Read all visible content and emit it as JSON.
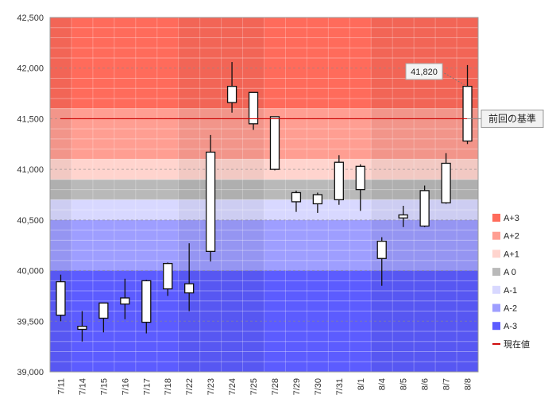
{
  "chart_data": {
    "type": "candlestick",
    "title": "",
    "xlabel": "",
    "ylabel": "",
    "ylim": [
      39000,
      42500
    ],
    "y_ticks": [
      "39,000",
      "39,500",
      "40,000",
      "40,500",
      "41,000",
      "41,500",
      "42,000",
      "42,500"
    ],
    "categories": [
      "7/11",
      "7/14",
      "7/15",
      "7/16",
      "7/17",
      "7/18",
      "7/22",
      "7/23",
      "7/24",
      "7/25",
      "7/28",
      "7/29",
      "7/30",
      "7/31",
      "8/1",
      "8/4",
      "8/5",
      "8/6",
      "8/7",
      "8/8"
    ],
    "candles": [
      {
        "date": "7/11",
        "open": 39560,
        "high": 39960,
        "low": 39500,
        "close": 39890
      },
      {
        "date": "7/14",
        "open": 39420,
        "high": 39600,
        "low": 39300,
        "close": 39450
      },
      {
        "date": "7/15",
        "open": 39530,
        "high": 39680,
        "low": 39390,
        "close": 39680
      },
      {
        "date": "7/16",
        "open": 39670,
        "high": 39920,
        "low": 39520,
        "close": 39730
      },
      {
        "date": "7/17",
        "open": 39490,
        "high": 39910,
        "low": 39380,
        "close": 39900
      },
      {
        "date": "7/18",
        "open": 39820,
        "high": 40080,
        "low": 39750,
        "close": 40070
      },
      {
        "date": "7/22",
        "open": 39780,
        "high": 40270,
        "low": 39600,
        "close": 39870
      },
      {
        "date": "7/23",
        "open": 40190,
        "high": 41340,
        "low": 40090,
        "close": 41170
      },
      {
        "date": "7/24",
        "open": 41660,
        "high": 42060,
        "low": 41560,
        "close": 41820
      },
      {
        "date": "7/25",
        "open": 41450,
        "high": 41750,
        "low": 41390,
        "close": 41760
      },
      {
        "date": "7/28",
        "open": 41000,
        "high": 41510,
        "low": 40990,
        "close": 41520
      },
      {
        "date": "7/29",
        "open": 40680,
        "high": 40790,
        "low": 40580,
        "close": 40770
      },
      {
        "date": "7/30",
        "open": 40660,
        "high": 40770,
        "low": 40570,
        "close": 40750
      },
      {
        "date": "7/31",
        "open": 40700,
        "high": 41140,
        "low": 40650,
        "close": 41070
      },
      {
        "date": "8/1",
        "open": 40800,
        "high": 41050,
        "low": 40590,
        "close": 41030
      },
      {
        "date": "8/4",
        "open": 40120,
        "high": 40330,
        "low": 39850,
        "close": 40290
      },
      {
        "date": "8/5",
        "open": 40520,
        "high": 40640,
        "low": 40430,
        "close": 40550
      },
      {
        "date": "8/6",
        "open": 40440,
        "high": 40840,
        "low": 40430,
        "close": 40790
      },
      {
        "date": "8/7",
        "open": 40670,
        "high": 41160,
        "low": 40660,
        "close": 41060
      },
      {
        "date": "8/8",
        "open": 41280,
        "high": 42030,
        "low": 41250,
        "close": 41820
      }
    ],
    "reference_line": {
      "label": "前回の基準",
      "value": 41500,
      "color": "#cc0000"
    },
    "callout": {
      "label": "41,820",
      "value": 41820,
      "date": "8/8"
    },
    "bands": [
      {
        "name": "A+3",
        "low": 41600,
        "high": 42500,
        "color": "#ff6b5b"
      },
      {
        "name": "A+2",
        "low": 41100,
        "high": 41600,
        "color": "#ff9e92"
      },
      {
        "name": "A+1",
        "low": 40900,
        "high": 41100,
        "color": "#ffd4ce"
      },
      {
        "name": "A 0",
        "low": 40700,
        "high": 40900,
        "color": "#b9b9b9"
      },
      {
        "name": "A-1",
        "low": 40500,
        "high": 40700,
        "color": "#d8d8ff"
      },
      {
        "name": "A-2",
        "low": 40000,
        "high": 40500,
        "color": "#9e9eff"
      },
      {
        "name": "A-3",
        "low": 39000,
        "high": 40000,
        "color": "#5c5cff"
      }
    ],
    "legend": [
      {
        "label": "A+3",
        "color": "#ff6b5b"
      },
      {
        "label": "A+2",
        "color": "#ff9e92"
      },
      {
        "label": "A+1",
        "color": "#ffd4ce"
      },
      {
        "label": "A 0",
        "color": "#b9b9b9"
      },
      {
        "label": "A-1",
        "color": "#d8d8ff"
      },
      {
        "label": "A-2",
        "color": "#9e9eff"
      },
      {
        "label": "A-3",
        "color": "#5c5cff"
      },
      {
        "label": "現在値",
        "color": "#cc0000",
        "kind": "line"
      }
    ],
    "legend_position": "right",
    "grid": true
  }
}
